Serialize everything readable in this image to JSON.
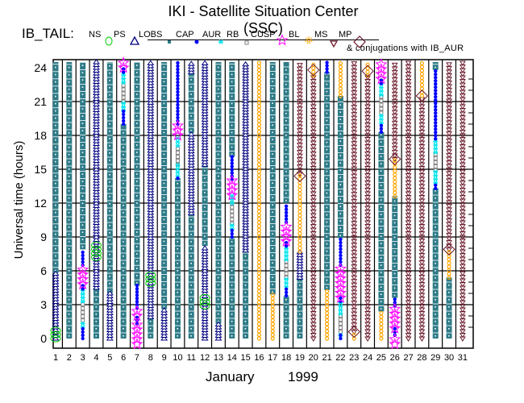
{
  "title": "IKI - Satellite Situation Center (SSC)",
  "legend": {
    "prefix": "IB_TAIL:",
    "items": [
      {
        "key": "NS",
        "label": "NS"
      },
      {
        "key": "PS",
        "label": "PS"
      },
      {
        "key": "LOBS",
        "label": "LOBS"
      },
      {
        "key": "CAP",
        "label": "CAP"
      },
      {
        "key": "AUR",
        "label": "AUR"
      },
      {
        "key": "RB",
        "label": "RB"
      },
      {
        "key": "CUSP",
        "label": "CUSP"
      },
      {
        "key": "BL",
        "label": "BL"
      },
      {
        "key": "MS",
        "label": "MS"
      },
      {
        "key": "MP",
        "label": "MP"
      }
    ],
    "conjugation_note": "& conjugations with IB_AUR"
  },
  "colors": {
    "CAP": "#2e7b87",
    "LOBS": "#000080",
    "MP": "#6b1a2a",
    "MS": "#ffa500",
    "AUR": "#0000ff",
    "RB": "#00e5ee",
    "CUSP": "#808080",
    "BL": "#ff00ff",
    "PS": "#00cc00",
    "conj": "#6b1a2a"
  },
  "chart_data": {
    "type": "scatter",
    "title": "IKI - Satellite Situation Center (SSC)",
    "xlabel_month": "January",
    "xlabel_year": "1999",
    "ylabel": "Universal time (hours)",
    "xlim": [
      1,
      31
    ],
    "ylim": [
      0,
      24
    ],
    "yticks": [
      "0",
      "3",
      "6",
      "9",
      "12",
      "15",
      "18",
      "21",
      "24"
    ],
    "xticks": [
      "1",
      "2",
      "3",
      "4",
      "5",
      "6",
      "7",
      "8",
      "9",
      "10",
      "11",
      "12",
      "13",
      "14",
      "15",
      "16",
      "17",
      "18",
      "19",
      "20",
      "21",
      "22",
      "23",
      "24",
      "25",
      "26",
      "27",
      "28",
      "29",
      "30",
      "31"
    ],
    "grid": true,
    "days": [
      {
        "day": 1,
        "segments": [
          [
            "LOBS",
            0,
            5.8
          ],
          [
            "CAP",
            5.8,
            24.5
          ],
          [
            "PS",
            0,
            1
          ]
        ]
      },
      {
        "day": 2,
        "segments": [
          [
            "CAP",
            0,
            24.5
          ]
        ]
      },
      {
        "day": 3,
        "segments": [
          [
            "AUR",
            0,
            1
          ],
          [
            "RB",
            1,
            1.6
          ],
          [
            "CUSP",
            1.6,
            3.3
          ],
          [
            "RB",
            3.3,
            4.4
          ],
          [
            "AUR",
            4.4,
            4.8
          ],
          [
            "AUR",
            6.5,
            7.9
          ],
          [
            "CAP",
            7.9,
            24.5
          ],
          [
            "BL",
            4.8,
            6.5
          ]
        ]
      },
      {
        "day": 4,
        "segments": [
          [
            "CAP",
            0,
            4.5
          ],
          [
            "LOBS",
            4.5,
            24.5
          ],
          [
            "PS",
            7.2,
            8.6
          ]
        ]
      },
      {
        "day": 5,
        "segments": [
          [
            "LOBS",
            0,
            4
          ],
          [
            "CAP",
            4,
            24.5
          ]
        ]
      },
      {
        "day": 6,
        "segments": [
          [
            "CAP",
            0,
            19
          ],
          [
            "AUR",
            19,
            20.2
          ],
          [
            "RB",
            20.2,
            21
          ],
          [
            "CUSP",
            21,
            22.7
          ],
          [
            "RB",
            22.7,
            23.6
          ],
          [
            "AUR",
            23.6,
            24
          ],
          [
            "BL",
            24,
            24.6
          ]
        ]
      },
      {
        "day": 7,
        "segments": [
          [
            "AUR",
            1.3,
            2
          ],
          [
            "AUR",
            2.7,
            4.7
          ],
          [
            "CAP",
            4.7,
            24.5
          ],
          [
            "BL",
            2,
            2.7
          ],
          [
            "BL",
            -0.5,
            1.3
          ]
        ]
      },
      {
        "day": 8,
        "segments": [
          [
            "CAP",
            0,
            1.9
          ],
          [
            "LOBS",
            1.9,
            24.5
          ],
          [
            "PS",
            4.9,
            5.8
          ]
        ]
      },
      {
        "day": 9,
        "segments": [
          [
            "LOBS",
            0,
            2.6
          ],
          [
            "CAP",
            2.6,
            24.5
          ]
        ]
      },
      {
        "day": 10,
        "segments": [
          [
            "CAP",
            0,
            14.2
          ],
          [
            "AUR",
            14.2,
            14.4
          ],
          [
            "RB",
            14.4,
            15.4
          ],
          [
            "CUSP",
            15.4,
            17.1
          ],
          [
            "RB",
            17.1,
            18
          ],
          [
            "AUR",
            19,
            24.5
          ],
          [
            "BL",
            18,
            19
          ]
        ]
      },
      {
        "day": 11,
        "segments": [
          [
            "CAP",
            0,
            11.1
          ],
          [
            "LOBS",
            11.1,
            18.2
          ],
          [
            "CAP",
            18.2,
            23.6
          ],
          [
            "LOBS",
            23.6,
            24.5
          ]
        ]
      },
      {
        "day": 12,
        "segments": [
          [
            "LOBS",
            0,
            8.2
          ],
          [
            "CAP",
            8.2,
            15.4
          ],
          [
            "LOBS",
            15.4,
            24.5
          ],
          [
            "PS",
            2.9,
            3.8
          ]
        ]
      },
      {
        "day": 13,
        "segments": [
          [
            "LOBS",
            0,
            1.3
          ],
          [
            "CAP",
            1.3,
            24.5
          ]
        ]
      },
      {
        "day": 14,
        "segments": [
          [
            "CAP",
            0,
            9
          ],
          [
            "AUR",
            9,
            9.7
          ],
          [
            "RB",
            9.7,
            10.2
          ],
          [
            "CUSP",
            10.2,
            12
          ],
          [
            "RB",
            12,
            12.7
          ],
          [
            "AUR",
            14.1,
            16.1
          ],
          [
            "CAP",
            16.1,
            24.5
          ],
          [
            "BL",
            12.7,
            14.1
          ]
        ]
      },
      {
        "day": 15,
        "segments": [
          [
            "CAP",
            0,
            7.8
          ],
          [
            "LOBS",
            7.8,
            24.5
          ]
        ]
      },
      {
        "day": 16,
        "segments": [
          [
            "MS",
            0,
            24.5
          ]
        ]
      },
      {
        "day": 17,
        "segments": [
          [
            "MS",
            0,
            3.9
          ],
          [
            "CAP",
            3.9,
            24.5
          ]
        ]
      },
      {
        "day": 18,
        "segments": [
          [
            "CAP",
            0,
            3.8
          ],
          [
            "AUR",
            3.8,
            4.6
          ],
          [
            "RB",
            4.6,
            5.4
          ],
          [
            "CUSP",
            5.4,
            7
          ],
          [
            "RB",
            7,
            8.2
          ],
          [
            "AUR",
            8.2,
            8.6
          ],
          [
            "AUR",
            10.3,
            12
          ],
          [
            "CAP",
            12,
            24.5
          ],
          [
            "BL",
            8.6,
            10.3
          ]
        ]
      },
      {
        "day": 19,
        "segments": [
          [
            "CAP",
            0,
            5.4
          ],
          [
            "LOBS",
            5.4,
            7.7
          ],
          [
            "MS",
            7.7,
            14.6
          ],
          [
            "MP",
            14.6,
            24.5
          ]
        ]
      },
      {
        "day": 20,
        "segments": [
          [
            "MP",
            0,
            23.3
          ],
          [
            "MS",
            23.3,
            24.5
          ]
        ]
      },
      {
        "day": 21,
        "segments": [
          [
            "MS",
            0,
            4.3
          ],
          [
            "CAP",
            4.3,
            23.6
          ],
          [
            "AUR",
            23.6,
            24.5
          ]
        ]
      },
      {
        "day": 22,
        "segments": [
          [
            "AUR",
            0,
            0.3
          ],
          [
            "RB",
            0.3,
            0.6
          ],
          [
            "CUSP",
            0.6,
            2.2
          ],
          [
            "RB",
            2.2,
            3.3
          ],
          [
            "AUR",
            3.3,
            3.6
          ],
          [
            "AUR",
            6.5,
            8.9
          ],
          [
            "CAP",
            8.9,
            21.5
          ],
          [
            "MS",
            21.5,
            24.5
          ],
          [
            "BL",
            3.6,
            6.5
          ]
        ]
      },
      {
        "day": 23,
        "segments": [
          [
            "MS",
            0,
            0.6
          ],
          [
            "MP",
            0.6,
            24.5
          ]
        ]
      },
      {
        "day": 24,
        "segments": [
          [
            "MP",
            0,
            23.3
          ],
          [
            "MS",
            23.3,
            24.5
          ]
        ]
      },
      {
        "day": 25,
        "segments": [
          [
            "MS",
            0,
            2.4
          ],
          [
            "CAP",
            2.4,
            18.3
          ],
          [
            "AUR",
            18.3,
            19.1
          ],
          [
            "RB",
            19.1,
            20
          ],
          [
            "CUSP",
            20,
            21.6
          ],
          [
            "RB",
            21.6,
            22.6
          ],
          [
            "AUR",
            22.6,
            23
          ],
          [
            "BL",
            23,
            24.6
          ]
        ]
      },
      {
        "day": 26,
        "segments": [
          [
            "AUR",
            0.3,
            0.9
          ],
          [
            "AUR",
            2.9,
            3.6
          ],
          [
            "CAP",
            3.6,
            12.6
          ],
          [
            "MS",
            12.6,
            15.9
          ],
          [
            "MP",
            15.9,
            24.5
          ],
          [
            "BL",
            0.9,
            2.9
          ],
          [
            "BL",
            -0.5,
            0.3
          ]
        ]
      },
      {
        "day": 27,
        "segments": [
          [
            "MP",
            0,
            24.5
          ]
        ]
      },
      {
        "day": 28,
        "segments": [
          [
            "MP",
            0,
            21.5
          ],
          [
            "MS",
            21.5,
            24.5
          ]
        ]
      },
      {
        "day": 29,
        "segments": [
          [
            "CAP",
            0,
            13.3
          ],
          [
            "AUR",
            13.3,
            13.8
          ],
          [
            "RB",
            13.8,
            14.9
          ],
          [
            "CUSP",
            14.9,
            16.5
          ],
          [
            "RB",
            16.5,
            17.7
          ],
          [
            "AUR",
            17.7,
            23.8
          ],
          [
            "CAP",
            23.8,
            24.5
          ]
        ]
      },
      {
        "day": 30,
        "segments": [
          [
            "CAP",
            0,
            5.4
          ],
          [
            "MS",
            5.4,
            7.9
          ],
          [
            "MP",
            7.9,
            24.5
          ]
        ]
      },
      {
        "day": 31,
        "segments": [
          [
            "MP",
            0,
            24.5
          ]
        ]
      }
    ],
    "conjugations": [
      {
        "day": 19,
        "hour": 14.4
      },
      {
        "day": 20,
        "hour": 23.8
      },
      {
        "day": 23,
        "hour": 0.6
      },
      {
        "day": 24,
        "hour": 23.7
      },
      {
        "day": 26,
        "hour": 15.9
      },
      {
        "day": 28,
        "hour": 21.5
      },
      {
        "day": 30,
        "hour": 7.9
      }
    ]
  }
}
